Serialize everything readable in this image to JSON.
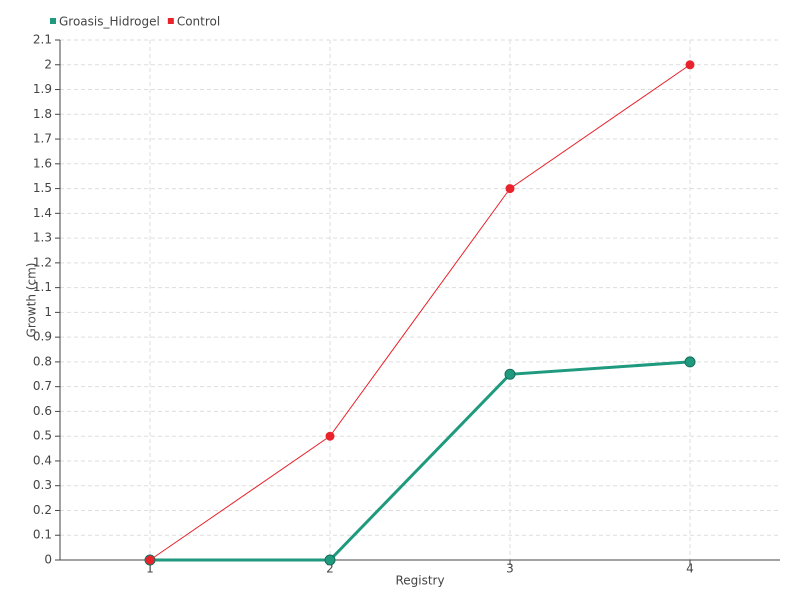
{
  "chart_data": {
    "type": "line",
    "x_label": "Registry",
    "y_label": "Growth (cm)",
    "x": [
      1,
      2,
      3,
      4
    ],
    "xlim": [
      0.5,
      4.5
    ],
    "xticks": [
      1,
      2,
      3,
      4
    ],
    "ylim": [
      0,
      2.1
    ],
    "yticks": [
      0,
      0.1,
      0.2,
      0.3,
      0.4,
      0.5,
      0.6,
      0.7,
      0.8,
      0.9,
      1,
      1.1,
      1.2,
      1.3,
      1.4,
      1.5,
      1.6,
      1.7,
      1.8,
      1.9,
      2,
      2.1
    ],
    "grid": true,
    "legend": "top-left",
    "series": [
      {
        "name": "Groasis_Hidrogel",
        "color": "#1f9a7e",
        "values": [
          0,
          0,
          0.75,
          0.8
        ]
      },
      {
        "name": "Control",
        "color": "#e8232b",
        "values": [
          0,
          0.5,
          1.5,
          2
        ]
      }
    ]
  }
}
